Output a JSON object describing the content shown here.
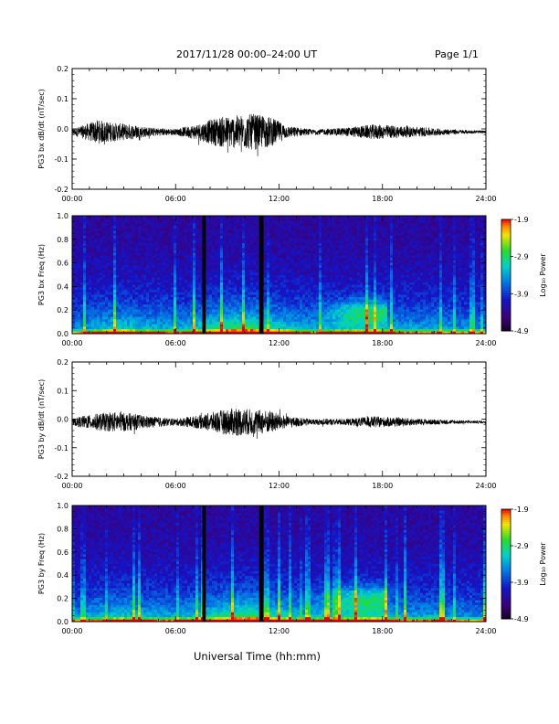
{
  "header": {
    "title": "2017/11/28  00:00–24:00 UT",
    "page_label": "Page 1/1"
  },
  "footer": {
    "xlabel": "Universal Time (hh:mm)"
  },
  "chart_data": [
    {
      "type": "line",
      "ylabel": "PG3 bx dB/dt (nT/sec)",
      "xlabel": "",
      "xlim": [
        0,
        24
      ],
      "ylim": [
        -0.2,
        0.2
      ],
      "x_tick_labels": [
        "00:00",
        "06:00",
        "12:00",
        "18:00",
        "24:00"
      ],
      "y_tick_labels": [
        "-0.2",
        "-0.1",
        "0.0",
        "0.1",
        "0.2"
      ],
      "y_ticks": [
        -0.2,
        -0.1,
        0.0,
        0.1,
        0.2
      ],
      "offset": -0.01,
      "envelope": [
        [
          0.0,
          0.01
        ],
        [
          0.5,
          0.02
        ],
        [
          1.5,
          0.04
        ],
        [
          2.5,
          0.03
        ],
        [
          3.5,
          0.025
        ],
        [
          4.5,
          0.015
        ],
        [
          6.0,
          0.01
        ],
        [
          7.5,
          0.03
        ],
        [
          8.5,
          0.05
        ],
        [
          9.5,
          0.055
        ],
        [
          10.5,
          0.06
        ],
        [
          11.5,
          0.05
        ],
        [
          12.5,
          0.02
        ],
        [
          14.0,
          0.008
        ],
        [
          16.0,
          0.015
        ],
        [
          17.5,
          0.025
        ],
        [
          19.0,
          0.02
        ],
        [
          20.5,
          0.015
        ],
        [
          22.0,
          0.008
        ],
        [
          24.0,
          0.004
        ]
      ],
      "grid": false
    },
    {
      "type": "heatmap",
      "ylabel": "PG3 bx Freq (Hz)",
      "xlim": [
        0,
        24
      ],
      "ylim": [
        0.0,
        1.0
      ],
      "x_tick_labels": [
        "00:00",
        "06:00",
        "12:00",
        "18:00",
        "24:00"
      ],
      "y_tick_labels": [
        "0.0",
        "0.2",
        "0.4",
        "0.6",
        "0.8",
        "1.0"
      ],
      "y_ticks": [
        0.0,
        0.2,
        0.4,
        0.6,
        0.8,
        1.0
      ],
      "colorbar": {
        "label": "Log₁₀ Power",
        "range": [
          -4.9,
          -1.9
        ],
        "tick_values": [
          -1.9,
          -2.9,
          -3.9,
          -4.9
        ],
        "tick_labels": [
          "-1.9",
          "-2.9",
          "-3.9",
          "-4.9"
        ]
      },
      "data_gaps_hours": [
        [
          7.55,
          7.75
        ],
        [
          10.85,
          11.1
        ]
      ],
      "activity": [
        [
          0.0,
          0.05
        ],
        [
          1.0,
          0.3
        ],
        [
          2.0,
          0.45
        ],
        [
          3.0,
          0.55
        ],
        [
          4.0,
          0.4
        ],
        [
          5.0,
          0.35
        ],
        [
          6.0,
          0.3
        ],
        [
          7.0,
          0.4
        ],
        [
          8.0,
          0.65
        ],
        [
          9.0,
          0.8
        ],
        [
          10.0,
          0.85
        ],
        [
          11.0,
          0.8
        ],
        [
          12.0,
          0.6
        ],
        [
          13.0,
          0.4
        ],
        [
          14.0,
          0.3
        ],
        [
          15.0,
          0.35
        ],
        [
          16.0,
          0.45
        ],
        [
          17.0,
          0.5
        ],
        [
          18.0,
          0.45
        ],
        [
          19.0,
          0.3
        ],
        [
          20.0,
          0.25
        ],
        [
          21.0,
          0.3
        ],
        [
          22.0,
          0.2
        ],
        [
          23.0,
          0.15
        ],
        [
          24.0,
          0.1
        ]
      ],
      "pc_band": {
        "hours": [
          13.8,
          18.2
        ],
        "freq_range": [
          0.1,
          0.28
        ]
      }
    },
    {
      "type": "line",
      "ylabel": "PG3 by dB/dt (nT/sec)",
      "xlabel": "",
      "xlim": [
        0,
        24
      ],
      "ylim": [
        -0.2,
        0.2
      ],
      "x_tick_labels": [
        "00:00",
        "06:00",
        "12:00",
        "18:00",
        "24:00"
      ],
      "y_tick_labels": [
        "-0.2",
        "-0.1",
        "0.0",
        "0.1",
        "0.2"
      ],
      "y_ticks": [
        -0.2,
        -0.1,
        0.0,
        0.1,
        0.2
      ],
      "offset": -0.01,
      "envelope": [
        [
          0.0,
          0.01
        ],
        [
          0.5,
          0.02
        ],
        [
          1.5,
          0.03
        ],
        [
          2.5,
          0.035
        ],
        [
          3.5,
          0.03
        ],
        [
          4.5,
          0.02
        ],
        [
          6.0,
          0.012
        ],
        [
          7.5,
          0.025
        ],
        [
          8.5,
          0.04
        ],
        [
          9.5,
          0.05
        ],
        [
          10.5,
          0.045
        ],
        [
          11.5,
          0.04
        ],
        [
          12.5,
          0.02
        ],
        [
          14.0,
          0.01
        ],
        [
          16.0,
          0.012
        ],
        [
          17.5,
          0.02
        ],
        [
          19.0,
          0.015
        ],
        [
          20.5,
          0.01
        ],
        [
          22.0,
          0.007
        ],
        [
          24.0,
          0.004
        ]
      ],
      "grid": false
    },
    {
      "type": "heatmap",
      "ylabel": "PG3 by Freq (Hz)",
      "xlim": [
        0,
        24
      ],
      "ylim": [
        0.0,
        1.0
      ],
      "x_tick_labels": [
        "00:00",
        "06:00",
        "12:00",
        "18:00",
        "24:00"
      ],
      "y_tick_labels": [
        "0.0",
        "0.2",
        "0.4",
        "0.6",
        "0.8",
        "1.0"
      ],
      "y_ticks": [
        0.0,
        0.2,
        0.4,
        0.6,
        0.8,
        1.0
      ],
      "colorbar": {
        "label": "Log₁₀ Power",
        "range": [
          -4.9,
          -1.9
        ],
        "tick_values": [
          -1.9,
          -2.9,
          -3.9,
          -4.9
        ],
        "tick_labels": [
          "-1.9",
          "-2.9",
          "-3.9",
          "-4.9"
        ]
      },
      "data_gaps_hours": [
        [
          7.55,
          7.75
        ],
        [
          10.85,
          11.1
        ]
      ],
      "activity": [
        [
          0.0,
          0.05
        ],
        [
          1.0,
          0.3
        ],
        [
          2.0,
          0.4
        ],
        [
          3.0,
          0.5
        ],
        [
          4.0,
          0.4
        ],
        [
          5.0,
          0.3
        ],
        [
          6.0,
          0.3
        ],
        [
          7.0,
          0.4
        ],
        [
          8.0,
          0.6
        ],
        [
          9.0,
          0.75
        ],
        [
          10.0,
          0.85
        ],
        [
          11.0,
          0.8
        ],
        [
          12.0,
          0.6
        ],
        [
          13.0,
          0.4
        ],
        [
          14.0,
          0.35
        ],
        [
          15.0,
          0.4
        ],
        [
          16.0,
          0.5
        ],
        [
          17.0,
          0.55
        ],
        [
          18.0,
          0.5
        ],
        [
          19.0,
          0.3
        ],
        [
          20.0,
          0.25
        ],
        [
          21.0,
          0.3
        ],
        [
          22.0,
          0.2
        ],
        [
          23.0,
          0.15
        ],
        [
          24.0,
          0.1
        ]
      ],
      "pc_band": {
        "hours": [
          13.8,
          18.2
        ],
        "freq_range": [
          0.1,
          0.3
        ]
      }
    }
  ]
}
